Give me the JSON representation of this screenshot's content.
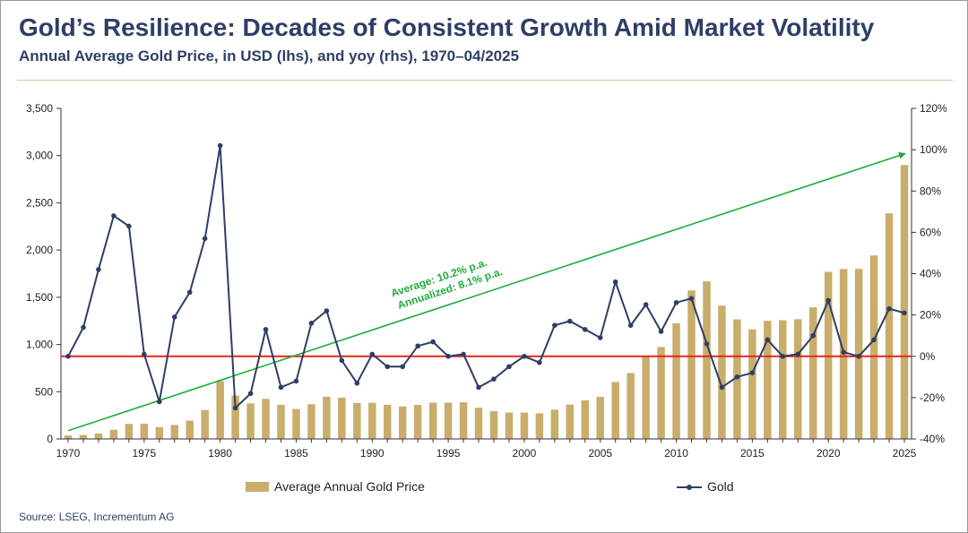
{
  "title": "Gold’s Resilience: Decades of Consistent Growth Amid Market Volatility",
  "subtitle": "Annual Average Gold Price, in USD (lhs), and yoy (rhs), 1970–04/2025",
  "source": "Source: LSEG, Incrementum AG",
  "colors": {
    "bar": "#c8ad6b",
    "line": "#2e3e66",
    "trend": "#1fad3b",
    "zero_line": "#e52520",
    "title": "#2e3e66"
  },
  "chart_data": {
    "type": "bar+line",
    "x": [
      1970,
      1971,
      1972,
      1973,
      1974,
      1975,
      1976,
      1977,
      1978,
      1979,
      1980,
      1981,
      1982,
      1983,
      1984,
      1985,
      1986,
      1987,
      1988,
      1989,
      1990,
      1991,
      1992,
      1993,
      1994,
      1995,
      1996,
      1997,
      1998,
      1999,
      2000,
      2001,
      2002,
      2003,
      2004,
      2005,
      2006,
      2007,
      2008,
      2009,
      2010,
      2011,
      2012,
      2013,
      2014,
      2015,
      2016,
      2017,
      2018,
      2019,
      2020,
      2021,
      2022,
      2023,
      2024,
      2025
    ],
    "series": [
      {
        "name": "Average Annual Gold Price",
        "type": "bar",
        "axis": "left",
        "values": [
          36,
          41,
          58,
          97,
          159,
          161,
          125,
          148,
          193,
          306,
          612,
          460,
          376,
          424,
          361,
          317,
          368,
          447,
          437,
          381,
          383,
          362,
          343,
          360,
          384,
          384,
          388,
          331,
          294,
          279,
          279,
          271,
          310,
          363,
          409,
          445,
          604,
          697,
          872,
          973,
          1225,
          1572,
          1669,
          1411,
          1266,
          1160,
          1251,
          1257,
          1268,
          1393,
          1770,
          1799,
          1800,
          1943,
          2389,
          2900
        ]
      },
      {
        "name": "Gold",
        "type": "line",
        "axis": "right",
        "values": [
          0,
          14,
          42,
          68,
          63,
          1,
          -22,
          19,
          31,
          57,
          102,
          -25,
          -18,
          13,
          -15,
          -12,
          16,
          22,
          -2,
          -13,
          1,
          -5,
          -5,
          5,
          7,
          0,
          1,
          -15,
          -11,
          -5,
          0,
          -3,
          15,
          17,
          13,
          9,
          36,
          15,
          25,
          12,
          26,
          28,
          6,
          -15,
          -10,
          -8,
          8,
          0,
          1,
          10,
          27,
          2,
          0,
          8,
          23,
          21
        ]
      }
    ],
    "left_axis": {
      "ylim": [
        0,
        3500
      ],
      "ticks": [
        "0",
        "500",
        "1,000",
        "1,500",
        "2,000",
        "2,500",
        "3,000",
        "3,500"
      ]
    },
    "right_axis": {
      "ylim": [
        -40,
        120
      ],
      "ticks": [
        "-40%",
        "-20%",
        "0%",
        "20%",
        "40%",
        "60%",
        "80%",
        "100%",
        "120%"
      ]
    },
    "x_ticks": [
      "1970",
      "1975",
      "1980",
      "1985",
      "1990",
      "1995",
      "2000",
      "2005",
      "2010",
      "2015",
      "2020",
      "2025"
    ],
    "zero_line": {
      "axis": "right",
      "value": 0
    },
    "trend_line": {
      "axis": "right",
      "from": {
        "x": 1970,
        "y": -36
      },
      "to": {
        "x": 2025,
        "y": 98
      }
    },
    "annotations": [
      "Average: 10.2% p.a.",
      "Annualized: 8.1% p.a."
    ],
    "legend": {
      "position": "bottom",
      "items": [
        "Average Annual Gold Price",
        "Gold"
      ]
    },
    "grid": false
  }
}
